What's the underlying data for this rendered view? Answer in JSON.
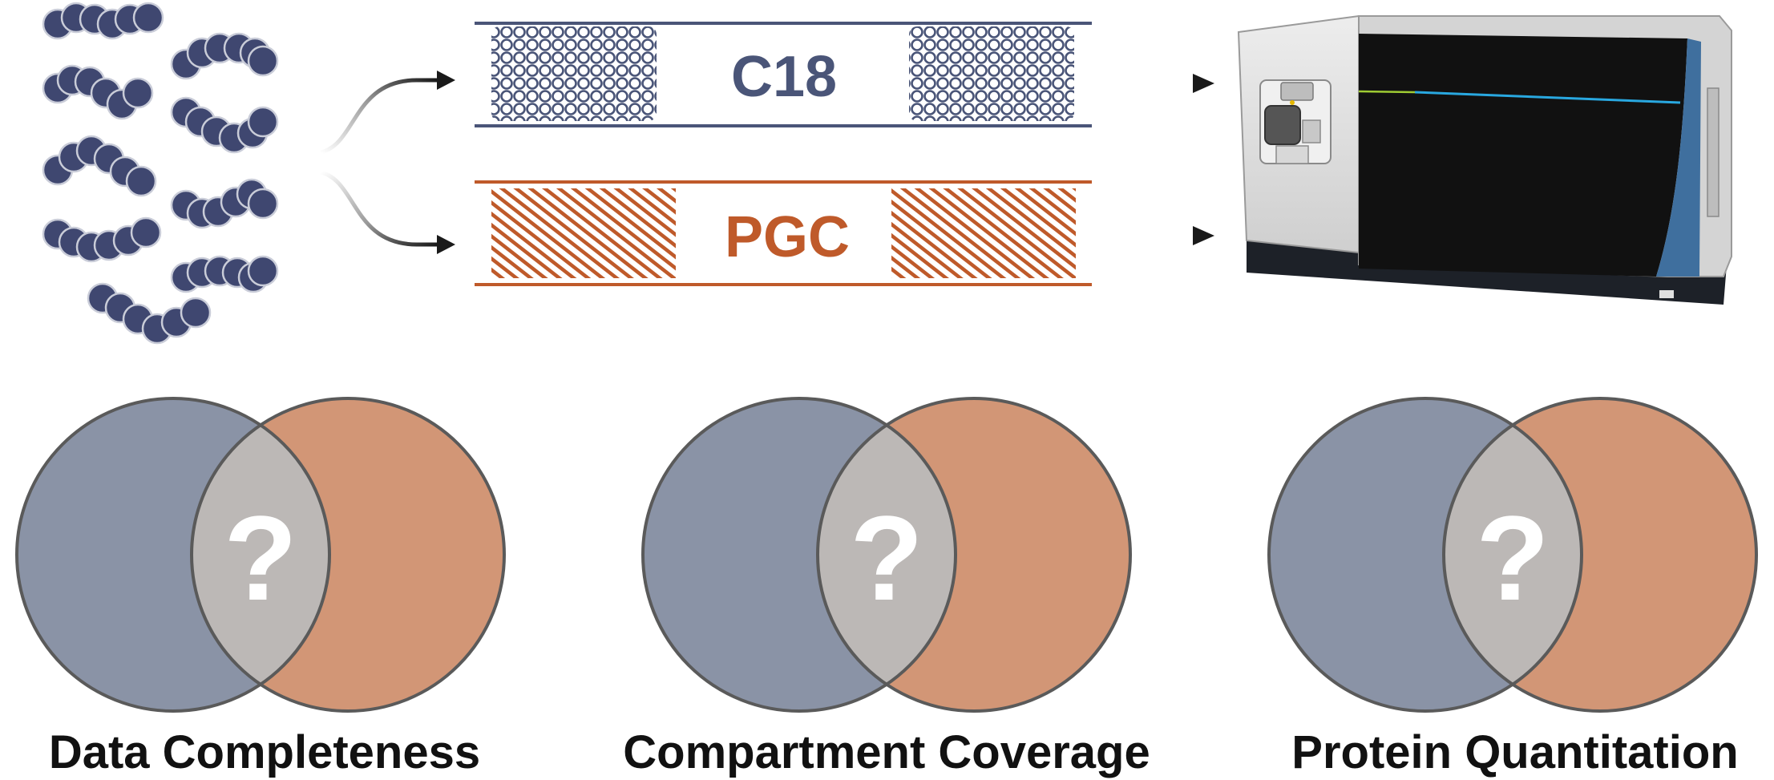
{
  "columns": {
    "top": {
      "label": "C18",
      "color": "#4a5578"
    },
    "bottom": {
      "label": "PGC",
      "color": "#bf5a2a"
    }
  },
  "venns": [
    {
      "mark": "?",
      "caption": "Data Completeness"
    },
    {
      "mark": "?",
      "caption": "Compartment Coverage"
    },
    {
      "mark": "?",
      "caption": "Protein Quantitation"
    }
  ],
  "colors": {
    "peptide": "#3f4770",
    "peptide_outline": "#c9ccd8",
    "venn_left": "#8a93a6",
    "venn_right": "#d29676",
    "venn_overlap": "#bcb8b6",
    "venn_stroke": "#5a5a5a",
    "arrow": "#1a1a1a",
    "instrument_body": "#dcdcdc",
    "instrument_panel": "#111111",
    "instrument_accent": "#3f6f9e"
  }
}
